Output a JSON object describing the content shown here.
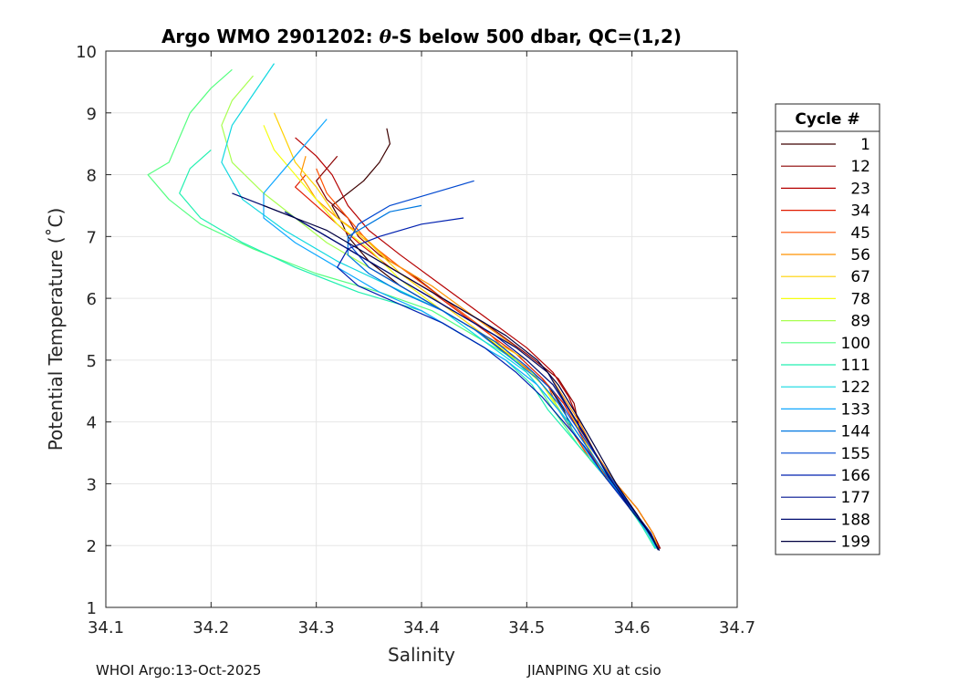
{
  "chart_data": {
    "type": "line",
    "title": "Argo WMO 2901202: θ-S below 500 dbar,  QC=(1,2)",
    "title_parts": {
      "prefix": "Argo WMO 2901202: ",
      "theta": "θ",
      "suffix": "-S below 500 dbar,  QC=(1,2)"
    },
    "xlabel": "Salinity",
    "ylabel": "Potential Temperature (˚C)",
    "xlim": [
      34.1,
      34.7
    ],
    "ylim": [
      1,
      10
    ],
    "x_ticks": [
      34.1,
      34.2,
      34.3,
      34.4,
      34.5,
      34.6,
      34.7
    ],
    "x_tick_labels": [
      "34.1",
      "34.2",
      "34.3",
      "34.4",
      "34.5",
      "34.6",
      "34.7"
    ],
    "y_ticks": [
      1,
      2,
      3,
      4,
      5,
      6,
      7,
      8,
      9,
      10
    ],
    "y_tick_labels": [
      "1",
      "2",
      "3",
      "4",
      "5",
      "6",
      "7",
      "8",
      "9",
      "10"
    ],
    "grid": true,
    "legend": {
      "title": "Cycle #",
      "placement": "right-outside",
      "entries": [
        {
          "label": "1",
          "color": "#3d0000"
        },
        {
          "label": "12",
          "color": "#8b0000"
        },
        {
          "label": "23",
          "color": "#b50000"
        },
        {
          "label": "34",
          "color": "#e01b00"
        },
        {
          "label": "45",
          "color": "#ff5000"
        },
        {
          "label": "56",
          "color": "#ff9200"
        },
        {
          "label": "67",
          "color": "#ffd000"
        },
        {
          "label": "78",
          "color": "#f5ff10"
        },
        {
          "label": "89",
          "color": "#a8ff50"
        },
        {
          "label": "100",
          "color": "#55ff80"
        },
        {
          "label": "111",
          "color": "#20f0b0"
        },
        {
          "label": "122",
          "color": "#10d8e0"
        },
        {
          "label": "133",
          "color": "#10a8ff"
        },
        {
          "label": "144",
          "color": "#0078e0"
        },
        {
          "label": "155",
          "color": "#0048d0"
        },
        {
          "label": "166",
          "color": "#0020b0"
        },
        {
          "label": "177",
          "color": "#001490"
        },
        {
          "label": "188",
          "color": "#000c70"
        },
        {
          "label": "199",
          "color": "#000040"
        }
      ]
    },
    "series": [
      {
        "name": "1",
        "color": "#3d0000",
        "salinity": [
          34.367,
          34.37,
          34.36,
          34.345,
          34.33,
          34.315,
          34.325,
          34.33,
          34.35,
          34.38,
          34.41,
          34.45,
          34.49,
          34.52,
          34.535,
          34.545,
          34.56,
          34.58,
          34.6,
          34.615,
          34.625
        ],
        "theta": [
          8.75,
          8.5,
          8.2,
          7.9,
          7.7,
          7.5,
          7.2,
          7.0,
          6.6,
          6.2,
          5.9,
          5.5,
          5.0,
          4.6,
          4.2,
          3.8,
          3.4,
          3.0,
          2.6,
          2.2,
          1.93
        ]
      },
      {
        "name": "12",
        "color": "#8b0000",
        "salinity": [
          34.32,
          34.31,
          34.3,
          34.31,
          34.33,
          34.34,
          34.36,
          34.39,
          34.42,
          34.46,
          34.5,
          34.53,
          34.545,
          34.55,
          34.565,
          34.585,
          34.605,
          34.62,
          34.627
        ],
        "theta": [
          8.3,
          8.1,
          7.9,
          7.6,
          7.3,
          7.0,
          6.7,
          6.4,
          6.0,
          5.6,
          5.1,
          4.7,
          4.3,
          3.9,
          3.5,
          3.0,
          2.6,
          2.2,
          1.95
        ]
      },
      {
        "name": "23",
        "color": "#b50000",
        "salinity": [
          34.28,
          34.3,
          34.315,
          34.33,
          34.35,
          34.38,
          34.42,
          34.46,
          34.5,
          34.525,
          34.54,
          34.55,
          34.565,
          34.585,
          34.605,
          34.62,
          34.626
        ],
        "theta": [
          8.6,
          8.3,
          8.0,
          7.5,
          7.1,
          6.7,
          6.2,
          5.7,
          5.2,
          4.8,
          4.4,
          4.0,
          3.5,
          3.0,
          2.6,
          2.2,
          1.95
        ]
      },
      {
        "name": "34",
        "color": "#e01b00",
        "salinity": [
          34.29,
          34.28,
          34.3,
          34.32,
          34.34,
          34.37,
          34.41,
          34.45,
          34.49,
          34.515,
          34.535,
          34.548,
          34.56,
          34.58,
          34.6,
          34.618,
          34.625
        ],
        "theta": [
          8.0,
          7.8,
          7.5,
          7.2,
          6.9,
          6.5,
          6.1,
          5.6,
          5.1,
          4.7,
          4.3,
          3.9,
          3.5,
          3.0,
          2.6,
          2.2,
          1.95
        ]
      },
      {
        "name": "45",
        "color": "#ff5000",
        "salinity": [
          34.3,
          34.31,
          34.33,
          34.35,
          34.38,
          34.42,
          34.46,
          34.49,
          34.52,
          34.53,
          34.545,
          34.56,
          34.58,
          34.6,
          34.617,
          34.624
        ],
        "theta": [
          8.1,
          7.7,
          7.3,
          6.9,
          6.5,
          6.0,
          5.5,
          5.0,
          4.6,
          4.2,
          3.8,
          3.4,
          3.0,
          2.6,
          2.2,
          1.95
        ]
      },
      {
        "name": "56",
        "color": "#ff9200",
        "salinity": [
          34.29,
          34.285,
          34.3,
          34.32,
          34.345,
          34.37,
          34.41,
          34.45,
          34.49,
          34.52,
          34.535,
          34.55,
          34.565,
          34.585,
          34.605,
          34.62,
          34.625
        ],
        "theta": [
          8.3,
          8.0,
          7.6,
          7.3,
          7.0,
          6.6,
          6.2,
          5.7,
          5.2,
          4.8,
          4.4,
          4.0,
          3.5,
          3.0,
          2.6,
          2.2,
          1.95
        ]
      },
      {
        "name": "67",
        "color": "#ffd000",
        "salinity": [
          34.26,
          34.27,
          34.28,
          34.3,
          34.32,
          34.35,
          34.38,
          34.42,
          34.46,
          34.5,
          34.525,
          34.54,
          34.555,
          34.575,
          34.6,
          34.617,
          34.624
        ],
        "theta": [
          9.0,
          8.6,
          8.2,
          7.8,
          7.3,
          6.9,
          6.4,
          5.9,
          5.4,
          5.0,
          4.6,
          4.2,
          3.7,
          3.1,
          2.6,
          2.2,
          1.95
        ]
      },
      {
        "name": "78",
        "color": "#f5ff10",
        "salinity": [
          34.25,
          34.26,
          34.28,
          34.3,
          34.32,
          34.35,
          34.38,
          34.42,
          34.46,
          34.49,
          34.515,
          34.53,
          34.55,
          34.57,
          34.595,
          34.615,
          34.623
        ],
        "theta": [
          8.8,
          8.4,
          8.0,
          7.6,
          7.2,
          6.8,
          6.3,
          5.8,
          5.4,
          5.0,
          4.6,
          4.2,
          3.7,
          3.2,
          2.7,
          2.2,
          1.95
        ]
      },
      {
        "name": "89",
        "color": "#a8ff50",
        "salinity": [
          34.24,
          34.22,
          34.21,
          34.22,
          34.25,
          34.28,
          34.31,
          34.35,
          34.39,
          34.43,
          34.47,
          34.5,
          34.52,
          34.535,
          34.55,
          34.575,
          34.6,
          34.618,
          34.624
        ],
        "theta": [
          9.6,
          9.2,
          8.8,
          8.2,
          7.7,
          7.3,
          6.9,
          6.5,
          6.1,
          5.7,
          5.3,
          4.9,
          4.5,
          4.1,
          3.7,
          3.1,
          2.6,
          2.2,
          1.95
        ]
      },
      {
        "name": "100",
        "color": "#55ff80",
        "salinity": [
          34.22,
          34.2,
          34.18,
          34.17,
          34.16,
          34.14,
          34.16,
          34.19,
          34.24,
          34.3,
          34.36,
          34.41,
          34.45,
          34.49,
          34.51,
          34.525,
          34.55,
          34.575,
          34.6,
          34.618,
          34.625
        ],
        "theta": [
          9.7,
          9.4,
          9.0,
          8.6,
          8.2,
          8.0,
          7.6,
          7.2,
          6.8,
          6.4,
          6.1,
          5.8,
          5.4,
          5.0,
          4.6,
          4.2,
          3.6,
          3.1,
          2.6,
          2.2,
          1.95
        ]
      },
      {
        "name": "111",
        "color": "#20f0b0",
        "salinity": [
          34.2,
          34.18,
          34.17,
          34.19,
          34.23,
          34.28,
          34.34,
          34.4,
          34.44,
          34.48,
          34.505,
          34.52,
          34.54,
          34.565,
          34.59,
          34.61,
          34.622
        ],
        "theta": [
          8.4,
          8.1,
          7.7,
          7.3,
          6.9,
          6.5,
          6.1,
          5.8,
          5.4,
          5.0,
          4.6,
          4.2,
          3.8,
          3.3,
          2.8,
          2.3,
          1.95
        ]
      },
      {
        "name": "122",
        "color": "#10d8e0",
        "salinity": [
          34.26,
          34.24,
          34.22,
          34.21,
          34.23,
          34.27,
          34.32,
          34.37,
          34.42,
          34.46,
          34.5,
          34.52,
          34.545,
          34.565,
          34.59,
          34.612,
          34.623
        ],
        "theta": [
          9.8,
          9.3,
          8.8,
          8.2,
          7.6,
          7.1,
          6.6,
          6.2,
          5.8,
          5.3,
          4.8,
          4.4,
          3.9,
          3.4,
          2.8,
          2.3,
          1.95
        ]
      },
      {
        "name": "133",
        "color": "#10a8ff",
        "salinity": [
          34.31,
          34.29,
          34.27,
          34.25,
          34.25,
          34.28,
          34.32,
          34.36,
          34.4,
          34.44,
          34.48,
          34.51,
          34.53,
          34.55,
          34.57,
          34.595,
          34.615,
          34.624
        ],
        "theta": [
          8.9,
          8.5,
          8.1,
          7.7,
          7.3,
          6.9,
          6.5,
          6.1,
          5.8,
          5.4,
          5.0,
          4.6,
          4.2,
          3.7,
          3.2,
          2.7,
          2.2,
          1.95
        ]
      },
      {
        "name": "144",
        "color": "#0078e0",
        "salinity": [
          34.4,
          34.37,
          34.35,
          34.33,
          34.33,
          34.35,
          34.38,
          34.42,
          34.45,
          34.48,
          34.51,
          34.53,
          34.545,
          34.565,
          34.585,
          34.605,
          34.62,
          34.626
        ],
        "theta": [
          7.5,
          7.4,
          7.2,
          7.0,
          6.7,
          6.4,
          6.1,
          5.8,
          5.5,
          5.1,
          4.7,
          4.3,
          3.9,
          3.4,
          2.9,
          2.5,
          2.1,
          1.92
        ]
      },
      {
        "name": "155",
        "color": "#0048d0",
        "salinity": [
          34.45,
          34.41,
          34.37,
          34.34,
          34.33,
          34.35,
          34.39,
          34.43,
          34.47,
          34.5,
          34.525,
          34.54,
          34.56,
          34.58,
          34.6,
          34.618,
          34.625
        ],
        "theta": [
          7.9,
          7.7,
          7.5,
          7.2,
          6.9,
          6.5,
          6.1,
          5.7,
          5.3,
          4.9,
          4.5,
          4.1,
          3.6,
          3.1,
          2.6,
          2.2,
          1.93
        ]
      },
      {
        "name": "166",
        "color": "#0020b0",
        "salinity": [
          34.44,
          34.4,
          34.36,
          34.33,
          34.32,
          34.34,
          34.38,
          34.42,
          34.46,
          34.49,
          34.515,
          34.535,
          34.555,
          34.575,
          34.598,
          34.617,
          34.625
        ],
        "theta": [
          7.3,
          7.2,
          7.0,
          6.8,
          6.5,
          6.2,
          5.9,
          5.6,
          5.2,
          4.8,
          4.4,
          4.0,
          3.6,
          3.1,
          2.6,
          2.2,
          1.93
        ]
      },
      {
        "name": "177",
        "color": "#001490",
        "salinity": [
          34.27,
          34.29,
          34.31,
          34.34,
          34.37,
          34.4,
          34.43,
          34.47,
          34.5,
          34.525,
          34.54,
          34.558,
          34.578,
          34.6,
          34.618,
          34.625
        ],
        "theta": [
          7.4,
          7.2,
          7.0,
          6.7,
          6.4,
          6.1,
          5.8,
          5.4,
          5.0,
          4.6,
          4.2,
          3.7,
          3.1,
          2.6,
          2.2,
          1.93
        ]
      },
      {
        "name": "188",
        "color": "#000c70",
        "salinity": [
          34.22,
          34.25,
          34.28,
          34.31,
          34.34,
          34.37,
          34.41,
          34.45,
          34.49,
          34.52,
          34.537,
          34.555,
          34.575,
          34.598,
          34.617,
          34.625
        ],
        "theta": [
          7.7,
          7.5,
          7.3,
          7.0,
          6.7,
          6.4,
          6.0,
          5.6,
          5.2,
          4.8,
          4.3,
          3.8,
          3.2,
          2.6,
          2.2,
          1.93
        ]
      },
      {
        "name": "199",
        "color": "#000040",
        "salinity": [
          34.25,
          34.28,
          34.31,
          34.34,
          34.37,
          34.4,
          34.44,
          34.48,
          34.51,
          34.53,
          34.548,
          34.565,
          34.585,
          34.605,
          34.62,
          34.626
        ],
        "theta": [
          7.5,
          7.3,
          7.1,
          6.8,
          6.5,
          6.2,
          5.8,
          5.4,
          5.0,
          4.6,
          4.1,
          3.6,
          3.0,
          2.5,
          2.1,
          1.92
        ]
      }
    ]
  },
  "footer": {
    "left": "WHOI Argo:13-Oct-2025",
    "right": "JIANPING XU at csio"
  }
}
